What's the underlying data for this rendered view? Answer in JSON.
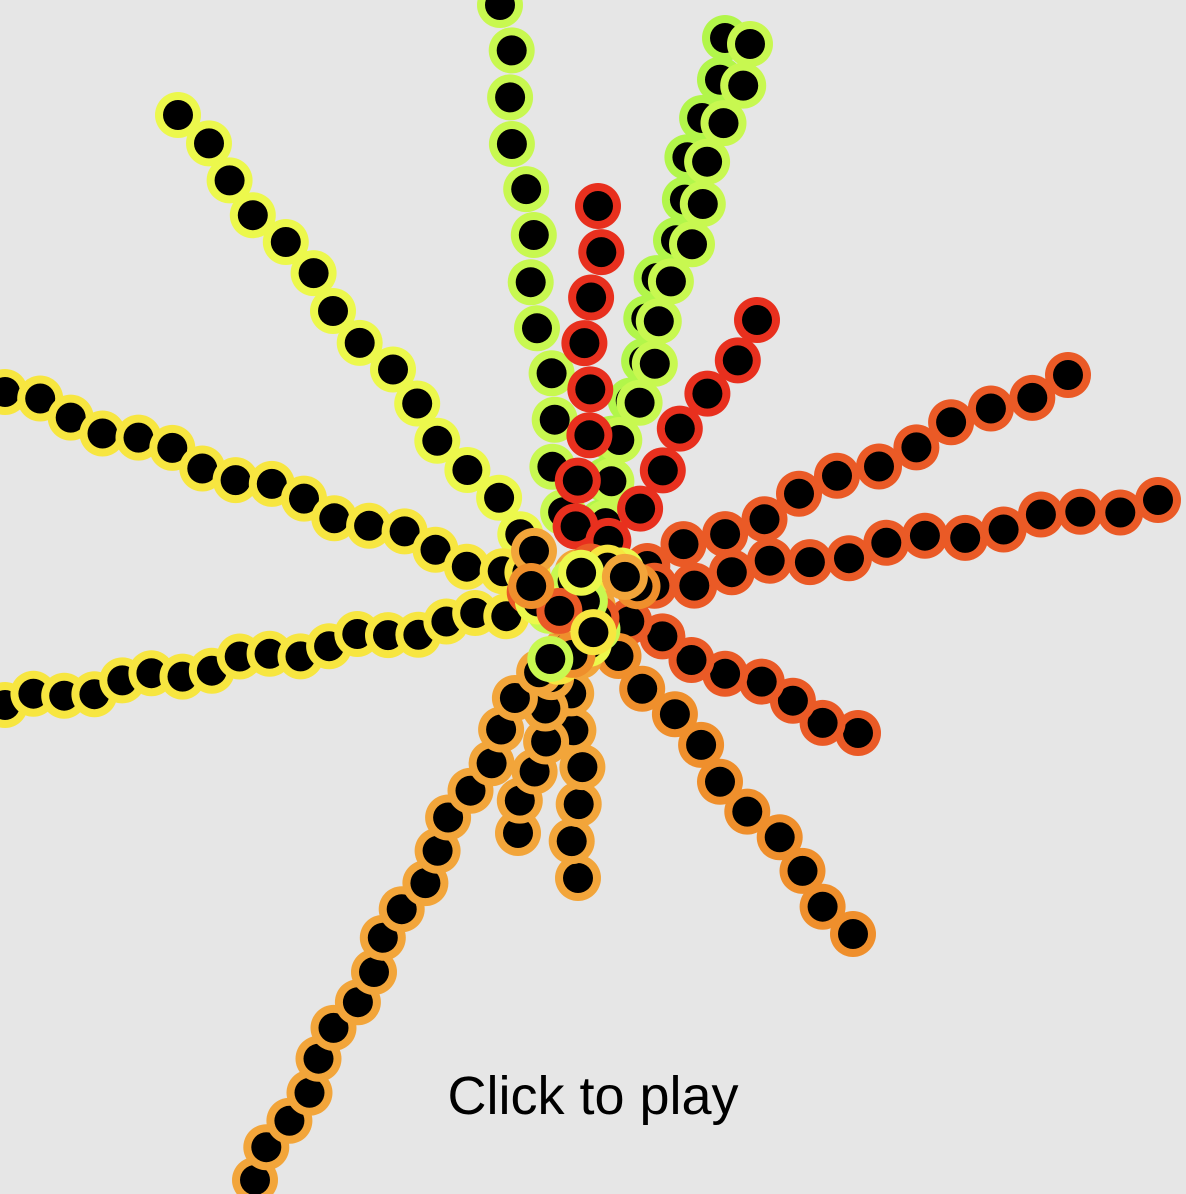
{
  "game": {
    "prompt_text": "Click to play"
  },
  "palette": {
    "background": "#e6e6e6",
    "dot_core": "#000000",
    "ring_red": "#e8301e",
    "ring_red_orange": "#ea5a26",
    "ring_orange": "#ef8f2c",
    "ring_light_orange": "#f2a53a",
    "ring_yellow": "#f7e640",
    "ring_yellow_lime": "#ecf84c",
    "ring_lime": "#c8f850",
    "ring_green_lime": "#b2f64a"
  }
}
